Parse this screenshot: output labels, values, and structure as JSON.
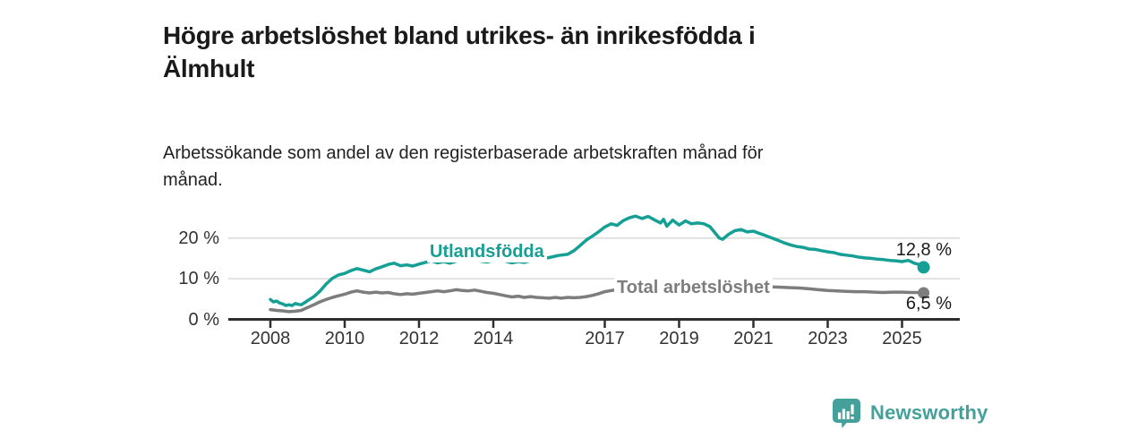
{
  "chart_data": {
    "type": "line",
    "title": "Högre arbetslöshet bland utrikes- än inrikesfödda i Älmhult",
    "title_lines": [
      "Högre arbetslöshet bland utrikes- än inrikesfödda i",
      "Älmhult"
    ],
    "subtitle": "Arbetssökande som andel av den registerbaserade arbetskraften månad för månad.",
    "subtitle_lines": [
      "Arbetssökande som andel av den registerbaserade arbetskraften månad för",
      "månad."
    ],
    "xlabel": "",
    "ylabel": "",
    "x_ticks": [
      2008,
      2010,
      2012,
      2014,
      2017,
      2019,
      2021,
      2023,
      2025
    ],
    "y_ticks": [
      {
        "value": 0,
        "label": "0 %"
      },
      {
        "value": 10,
        "label": "10 %"
      },
      {
        "value": 20,
        "label": "20 %"
      }
    ],
    "xlim": [
      2007.85,
      2026.1
    ],
    "ylim": [
      0,
      27
    ],
    "grid": "horizontal-only",
    "legend": "inline-labels-on-lines",
    "axis_color": "#2e2e2e",
    "grid_color": "#d9d9d9",
    "tick_text_color": "#333333",
    "value_label_color": "#1a1a1a",
    "series": [
      {
        "name": "Utlandsfödda",
        "color": "#16a095",
        "end_label": "12,8 %",
        "end_value": 12.8,
        "points": [
          [
            2008.0,
            4.9
          ],
          [
            2008.08,
            4.3
          ],
          [
            2008.17,
            4.5
          ],
          [
            2008.25,
            4.0
          ],
          [
            2008.33,
            3.8
          ],
          [
            2008.42,
            3.4
          ],
          [
            2008.5,
            3.6
          ],
          [
            2008.58,
            3.4
          ],
          [
            2008.67,
            3.9
          ],
          [
            2008.75,
            3.7
          ],
          [
            2008.83,
            3.6
          ],
          [
            2008.92,
            4.1
          ],
          [
            2009.0,
            4.6
          ],
          [
            2009.17,
            5.6
          ],
          [
            2009.33,
            6.9
          ],
          [
            2009.5,
            8.7
          ],
          [
            2009.67,
            10.1
          ],
          [
            2009.83,
            10.9
          ],
          [
            2010.0,
            11.3
          ],
          [
            2010.17,
            12.0
          ],
          [
            2010.33,
            12.5
          ],
          [
            2010.5,
            12.1
          ],
          [
            2010.67,
            11.7
          ],
          [
            2010.83,
            12.4
          ],
          [
            2011.0,
            12.9
          ],
          [
            2011.17,
            13.5
          ],
          [
            2011.33,
            13.8
          ],
          [
            2011.5,
            13.2
          ],
          [
            2011.67,
            13.4
          ],
          [
            2011.83,
            13.1
          ],
          [
            2012.0,
            13.6
          ],
          [
            2012.17,
            14.0
          ],
          [
            2012.33,
            14.4
          ],
          [
            2012.5,
            13.9
          ],
          [
            2012.67,
            14.2
          ],
          [
            2012.83,
            13.8
          ],
          [
            2013.0,
            14.3
          ],
          [
            2013.17,
            14.7
          ],
          [
            2013.33,
            14.4
          ],
          [
            2013.5,
            14.8
          ],
          [
            2013.67,
            14.3
          ],
          [
            2013.83,
            14.1
          ],
          [
            2014.0,
            14.5
          ],
          [
            2014.17,
            14.8
          ],
          [
            2014.33,
            14.3
          ],
          [
            2014.5,
            13.9
          ],
          [
            2014.67,
            14.2
          ],
          [
            2014.83,
            14.0
          ],
          [
            2015.0,
            14.4
          ],
          [
            2015.25,
            14.8
          ],
          [
            2015.5,
            15.2
          ],
          [
            2015.75,
            15.7
          ],
          [
            2016.0,
            16.0
          ],
          [
            2016.17,
            16.9
          ],
          [
            2016.33,
            18.1
          ],
          [
            2016.5,
            19.5
          ],
          [
            2016.67,
            20.5
          ],
          [
            2016.83,
            21.5
          ],
          [
            2017.0,
            22.7
          ],
          [
            2017.17,
            23.5
          ],
          [
            2017.33,
            23.1
          ],
          [
            2017.5,
            24.3
          ],
          [
            2017.67,
            25.0
          ],
          [
            2017.83,
            25.4
          ],
          [
            2018.0,
            24.8
          ],
          [
            2018.17,
            25.3
          ],
          [
            2018.33,
            24.5
          ],
          [
            2018.5,
            23.7
          ],
          [
            2018.58,
            24.6
          ],
          [
            2018.67,
            22.9
          ],
          [
            2018.83,
            24.4
          ],
          [
            2019.0,
            23.2
          ],
          [
            2019.17,
            24.2
          ],
          [
            2019.33,
            23.5
          ],
          [
            2019.5,
            23.7
          ],
          [
            2019.67,
            23.5
          ],
          [
            2019.83,
            22.8
          ],
          [
            2020.0,
            20.9
          ],
          [
            2020.08,
            20.0
          ],
          [
            2020.17,
            19.7
          ],
          [
            2020.33,
            20.9
          ],
          [
            2020.5,
            21.8
          ],
          [
            2020.67,
            22.1
          ],
          [
            2020.83,
            21.5
          ],
          [
            2021.0,
            21.7
          ],
          [
            2021.17,
            21.1
          ],
          [
            2021.33,
            20.6
          ],
          [
            2021.5,
            20.0
          ],
          [
            2021.67,
            19.4
          ],
          [
            2021.83,
            18.8
          ],
          [
            2022.0,
            18.3
          ],
          [
            2022.17,
            17.9
          ],
          [
            2022.33,
            17.7
          ],
          [
            2022.5,
            17.3
          ],
          [
            2022.67,
            17.2
          ],
          [
            2022.83,
            16.9
          ],
          [
            2023.0,
            16.6
          ],
          [
            2023.17,
            16.4
          ],
          [
            2023.33,
            16.0
          ],
          [
            2023.5,
            15.8
          ],
          [
            2023.67,
            15.6
          ],
          [
            2023.83,
            15.3
          ],
          [
            2024.0,
            15.1
          ],
          [
            2024.17,
            15.0
          ],
          [
            2024.33,
            14.8
          ],
          [
            2024.5,
            14.7
          ],
          [
            2024.67,
            14.5
          ],
          [
            2024.83,
            14.4
          ],
          [
            2025.0,
            14.2
          ],
          [
            2025.17,
            14.5
          ],
          [
            2025.33,
            13.8
          ],
          [
            2025.5,
            13.4
          ],
          [
            2025.58,
            12.8
          ]
        ]
      },
      {
        "name": "Total arbetslöshet",
        "color": "#7d7d7d",
        "end_label": "6,5 %",
        "end_value": 6.5,
        "points": [
          [
            2008.0,
            2.4
          ],
          [
            2008.17,
            2.2
          ],
          [
            2008.33,
            2.1
          ],
          [
            2008.5,
            1.9
          ],
          [
            2008.67,
            2.0
          ],
          [
            2008.83,
            2.2
          ],
          [
            2009.0,
            2.9
          ],
          [
            2009.17,
            3.6
          ],
          [
            2009.33,
            4.3
          ],
          [
            2009.5,
            4.9
          ],
          [
            2009.67,
            5.4
          ],
          [
            2009.83,
            5.8
          ],
          [
            2010.0,
            6.2
          ],
          [
            2010.17,
            6.7
          ],
          [
            2010.33,
            7.0
          ],
          [
            2010.5,
            6.7
          ],
          [
            2010.67,
            6.5
          ],
          [
            2010.83,
            6.7
          ],
          [
            2011.0,
            6.5
          ],
          [
            2011.17,
            6.6
          ],
          [
            2011.33,
            6.3
          ],
          [
            2011.5,
            6.1
          ],
          [
            2011.67,
            6.3
          ],
          [
            2011.83,
            6.2
          ],
          [
            2012.0,
            6.4
          ],
          [
            2012.17,
            6.6
          ],
          [
            2012.33,
            6.8
          ],
          [
            2012.5,
            7.0
          ],
          [
            2012.67,
            6.8
          ],
          [
            2012.83,
            7.0
          ],
          [
            2013.0,
            7.3
          ],
          [
            2013.17,
            7.1
          ],
          [
            2013.33,
            7.0
          ],
          [
            2013.5,
            7.2
          ],
          [
            2013.67,
            6.9
          ],
          [
            2013.83,
            6.6
          ],
          [
            2014.0,
            6.4
          ],
          [
            2014.17,
            6.1
          ],
          [
            2014.33,
            5.8
          ],
          [
            2014.5,
            5.5
          ],
          [
            2014.67,
            5.7
          ],
          [
            2014.83,
            5.4
          ],
          [
            2015.0,
            5.6
          ],
          [
            2015.17,
            5.4
          ],
          [
            2015.33,
            5.3
          ],
          [
            2015.5,
            5.2
          ],
          [
            2015.67,
            5.4
          ],
          [
            2015.83,
            5.2
          ],
          [
            2016.0,
            5.4
          ],
          [
            2016.17,
            5.3
          ],
          [
            2016.33,
            5.4
          ],
          [
            2016.5,
            5.6
          ],
          [
            2016.67,
            5.9
          ],
          [
            2016.83,
            6.3
          ],
          [
            2017.0,
            6.8
          ],
          [
            2017.17,
            7.1
          ],
          [
            2017.33,
            7.3
          ],
          [
            2017.5,
            7.4
          ],
          [
            2017.75,
            7.5
          ],
          [
            2018.0,
            7.4
          ],
          [
            2018.25,
            7.5
          ],
          [
            2018.5,
            7.4
          ],
          [
            2018.75,
            7.5
          ],
          [
            2019.0,
            7.6
          ],
          [
            2019.25,
            7.5
          ],
          [
            2019.5,
            7.6
          ],
          [
            2019.75,
            7.7
          ],
          [
            2020.0,
            7.9
          ],
          [
            2020.25,
            8.5
          ],
          [
            2020.5,
            8.7
          ],
          [
            2020.75,
            8.6
          ],
          [
            2021.0,
            8.4
          ],
          [
            2021.25,
            8.2
          ],
          [
            2021.5,
            8.0
          ],
          [
            2021.75,
            7.9
          ],
          [
            2022.0,
            7.8
          ],
          [
            2022.25,
            7.7
          ],
          [
            2022.5,
            7.5
          ],
          [
            2022.75,
            7.3
          ],
          [
            2023.0,
            7.1
          ],
          [
            2023.25,
            7.0
          ],
          [
            2023.5,
            6.9
          ],
          [
            2023.75,
            6.8
          ],
          [
            2024.0,
            6.8
          ],
          [
            2024.25,
            6.7
          ],
          [
            2024.5,
            6.6
          ],
          [
            2024.75,
            6.7
          ],
          [
            2025.0,
            6.7
          ],
          [
            2025.25,
            6.6
          ],
          [
            2025.5,
            6.6
          ],
          [
            2025.58,
            6.5
          ]
        ]
      }
    ]
  },
  "footer": {
    "brand": "Newsworthy",
    "brand_color": "#43a09a",
    "logo_icon": "bar-chart-speech-bubble-icon"
  }
}
